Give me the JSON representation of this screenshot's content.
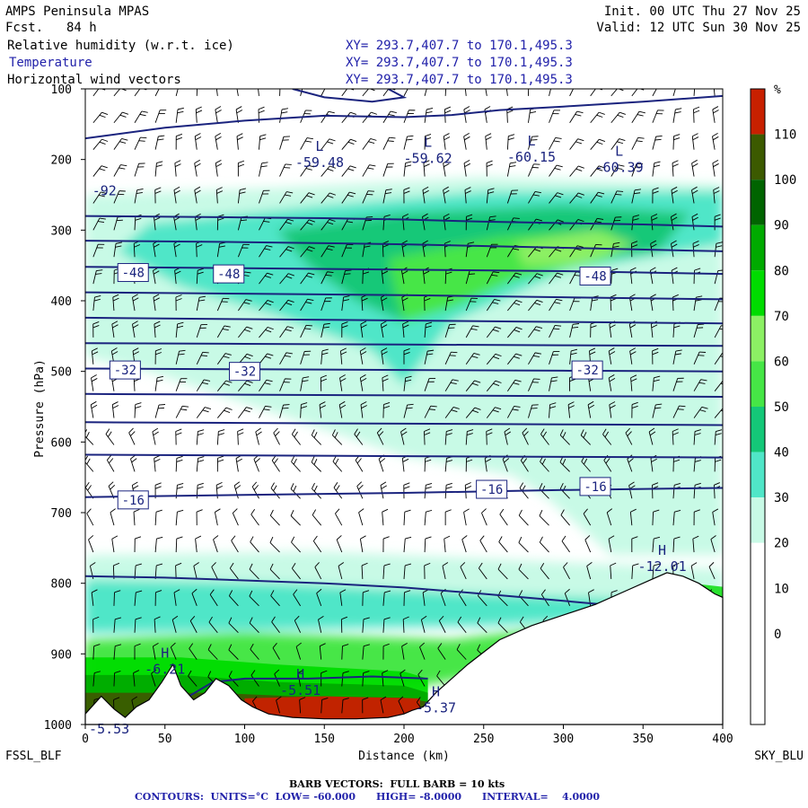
{
  "header": {
    "model": "AMPS Peninsula MPAS",
    "fcst_label": "Fcst.",
    "fcst_value": "84 h",
    "init": "Init. 00 UTC Thu 27 Nov 25",
    "valid": "Valid: 12 UTC Sun 30 Nov 25",
    "fields": [
      {
        "name": "Relative humidity (w.r.t. ice)",
        "xy": "XY= 293.7,407.7 to 170.1,495.3"
      },
      {
        "name": "Temperature",
        "xy": "XY= 293.7,407.7 to 170.1,495.3"
      },
      {
        "name": "Horizontal wind vectors",
        "xy": "XY= 293.7,407.7 to 170.1,495.3"
      }
    ]
  },
  "footer": {
    "left_station": "FSSL_BLF",
    "right_station": "SKY_BLU",
    "barb_note": "BARB VECTORS:  FULL BARB = 10 kts",
    "contour_note": "CONTOURS:  UNITS=°C  LOW= -60.000      HIGH= -8.0000      INTERVAL=    4.0000"
  },
  "colors": {
    "contour": "#1a237e",
    "rh_30": "#c8fae6",
    "rh_40": "#50e6c8",
    "rh_50": "#14c878",
    "rh_60": "#46e646",
    "rh_70": "#8cf064",
    "rh_80": "#00dc00",
    "rh_90": "#00aa00",
    "rh_100": "#006400",
    "rh_110": "#3c5a00",
    "rh_over": "#c82000"
  },
  "chart_data": {
    "type": "cross-section",
    "xlabel": "Distance (km)",
    "ylabel": "Pressure (hPa)",
    "xlim": [
      0,
      400
    ],
    "ylim": [
      1000,
      100
    ],
    "x_ticks": [
      0,
      50,
      100,
      150,
      200,
      250,
      300,
      350,
      400
    ],
    "y_ticks": [
      100,
      200,
      300,
      400,
      500,
      600,
      700,
      800,
      900,
      1000
    ],
    "colorbar": {
      "unit": "%",
      "levels": [
        0,
        10,
        20,
        30,
        40,
        50,
        60,
        70,
        80,
        90,
        100,
        110
      ],
      "colors": [
        "#ffffff",
        "#ffffff",
        "#ffffff",
        "#ffffff",
        "#c8fae6",
        "#50e6c8",
        "#14c878",
        "#46e646",
        "#8cf064",
        "#00dc00",
        "#00aa00",
        "#006400",
        "#3c5a00",
        "#c82000"
      ]
    },
    "temperature_contours": [
      {
        "x": [
          0,
          50,
          100,
          150,
          200,
          250,
          300,
          350,
          400
        ],
        "p": [
          280,
          281,
          282,
          283,
          285,
          288,
          290,
          292,
          295
        ]
      },
      {
        "x": [
          0,
          100,
          200,
          300,
          400
        ],
        "p": [
          315,
          317,
          320,
          325,
          330
        ]
      },
      {
        "x": [
          0,
          100,
          200,
          300,
          400
        ],
        "p": [
          352,
          354,
          356,
          358,
          362
        ]
      },
      {
        "x": [
          0,
          100,
          200,
          300,
          400
        ],
        "p": [
          388,
          390,
          392,
          395,
          398
        ]
      },
      {
        "x": [
          0,
          100,
          200,
          300,
          400
        ],
        "p": [
          424,
          426,
          428,
          430,
          432
        ]
      },
      {
        "x": [
          0,
          100,
          200,
          300,
          400
        ],
        "p": [
          460,
          461,
          462,
          463,
          464
        ]
      },
      {
        "x": [
          0,
          100,
          200,
          300,
          400
        ],
        "p": [
          496,
          497,
          498,
          499,
          500
        ]
      },
      {
        "x": [
          0,
          100,
          200,
          300,
          400
        ],
        "p": [
          532,
          533,
          534,
          535,
          536
        ]
      },
      {
        "x": [
          0,
          100,
          200,
          300,
          400
        ],
        "p": [
          572,
          573,
          574,
          575,
          576
        ]
      },
      {
        "x": [
          0,
          100,
          200,
          300,
          400
        ],
        "p": [
          618,
          619,
          620,
          621,
          622
        ]
      },
      {
        "x": [
          0,
          100,
          200,
          300,
          400
        ],
        "p": [
          678,
          675,
          672,
          668,
          665
        ]
      },
      {
        "x": [
          0,
          50,
          100,
          150,
          200,
          250,
          300,
          350,
          390
        ],
        "p": [
          790,
          792,
          796,
          800,
          806,
          815,
          825,
          835,
          840
        ]
      }
    ],
    "contour_labels": [
      {
        "text": "-48",
        "x": 30,
        "p": 360
      },
      {
        "text": "-48",
        "x": 90,
        "p": 362
      },
      {
        "text": "-48",
        "x": 320,
        "p": 365
      },
      {
        "text": "-32",
        "x": 25,
        "p": 498
      },
      {
        "text": "-32",
        "x": 100,
        "p": 500
      },
      {
        "text": "-32",
        "x": 315,
        "p": 498
      },
      {
        "text": "-16",
        "x": 30,
        "p": 682
      },
      {
        "text": "-16",
        "x": 255,
        "p": 667
      },
      {
        "text": "-16",
        "x": 320,
        "p": 663
      }
    ],
    "extrema": [
      {
        "symbol": "L",
        "value": "-59.48",
        "x": 147,
        "p": 188
      },
      {
        "symbol": "L",
        "value": "-59.62",
        "x": 215,
        "p": 182
      },
      {
        "symbol": "L",
        "value": "-60.15",
        "x": 280,
        "p": 180
      },
      {
        "symbol": "L",
        "value": "-60.39",
        "x": 335,
        "p": 195
      },
      {
        "symbol": "H",
        "value": "-12.01",
        "x": 362,
        "p": 760
      },
      {
        "symbol": "H",
        "value": "-6.21",
        "x": 50,
        "p": 905
      },
      {
        "symbol": "H",
        "value": "-5.51",
        "x": 135,
        "p": 935
      },
      {
        "symbol": "H",
        "value": "-5.37",
        "x": 220,
        "p": 960
      },
      {
        "symbol": "",
        "value": "-5.53",
        "x": 15,
        "p": 990
      },
      {
        "symbol": "",
        "value": "-92",
        "x": 12,
        "p": 228
      }
    ],
    "terrain": {
      "x": [
        0,
        10,
        18,
        25,
        32,
        40,
        48,
        55,
        60,
        68,
        75,
        82,
        90,
        98,
        105,
        115,
        130,
        150,
        170,
        190,
        200,
        205,
        212,
        220,
        240,
        260,
        280,
        300,
        320,
        340,
        355,
        365,
        375,
        385,
        395,
        400
      ],
      "p": [
        985,
        960,
        978,
        990,
        975,
        965,
        940,
        915,
        945,
        965,
        955,
        935,
        945,
        965,
        975,
        985,
        990,
        992,
        992,
        990,
        985,
        980,
        975,
        955,
        915,
        880,
        860,
        845,
        830,
        810,
        795,
        785,
        790,
        800,
        815,
        820
      ]
    }
  }
}
